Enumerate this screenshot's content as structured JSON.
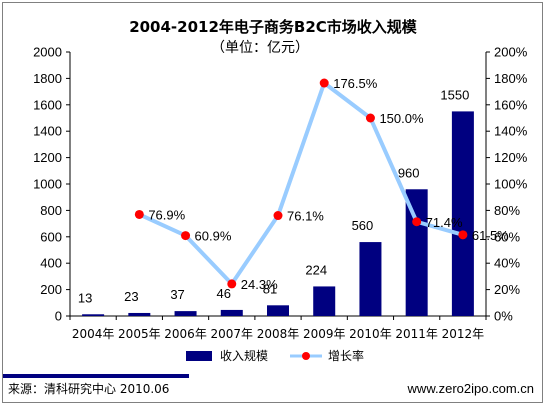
{
  "chart_data": {
    "type": "bar",
    "title": "2004-2012年电子商务B2C市场收入规模",
    "subtitle": "（单位：亿元）",
    "categories": [
      "2004年",
      "2005年",
      "2006年",
      "2007年",
      "2008年",
      "2009年",
      "2010年",
      "2011年",
      "2012年"
    ],
    "series": [
      {
        "name": "收入规模",
        "type": "bar",
        "axis": "left",
        "color": "#000080",
        "values": [
          13,
          23,
          37,
          46,
          81,
          224,
          560,
          960,
          1550
        ],
        "labels": [
          "13",
          "23",
          "37",
          "46",
          "81",
          "224",
          "560",
          "960",
          "1550"
        ]
      },
      {
        "name": "增长率",
        "type": "line",
        "axis": "right",
        "line_color": "#99ccff",
        "marker_color": "#ff0000",
        "values": [
          null,
          76.9,
          60.9,
          24.3,
          76.1,
          176.5,
          150.0,
          71.4,
          61.5
        ],
        "labels": [
          null,
          "76.9%",
          "60.9%",
          "24.3%",
          "76.1%",
          "176.5%",
          "150.0%",
          "71.4%",
          "61.5%"
        ]
      }
    ],
    "y_left": {
      "min": 0,
      "max": 2000,
      "ticks": [
        0,
        200,
        400,
        600,
        800,
        1000,
        1200,
        1400,
        1600,
        1800,
        2000
      ],
      "tick_labels": [
        "0",
        "200",
        "400",
        "600",
        "800",
        "1000",
        "1200",
        "1400",
        "1600",
        "1800",
        "2000"
      ]
    },
    "y_right": {
      "min": 0,
      "max": 200,
      "ticks": [
        0,
        20,
        40,
        60,
        80,
        100,
        120,
        140,
        160,
        180,
        200
      ],
      "tick_labels": [
        "0%",
        "20%",
        "40%",
        "60%",
        "80%",
        "100%",
        "120%",
        "140%",
        "160%",
        "180%",
        "200%"
      ]
    },
    "grid": false,
    "legend": "bottom"
  },
  "footer": {
    "source": "来源：清科研究中心 2010.06",
    "website": "www.zero2ipo.com.cn"
  }
}
